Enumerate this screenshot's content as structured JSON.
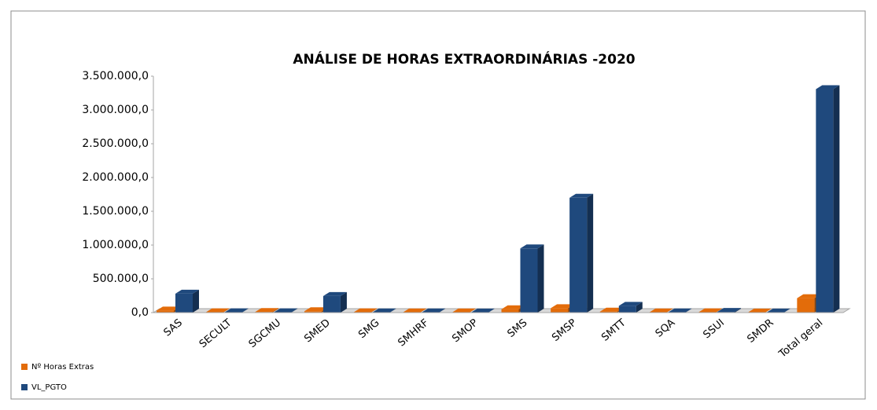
{
  "chart_data": {
    "type": "bar3d",
    "title": "ANÁLISE DE HORAS EXTRAORDINÁRIAS -2020",
    "categories": [
      "SAS",
      "SECULT",
      "SGCMU",
      "SMED",
      "SMG",
      "SMHRF",
      "SMOP",
      "SMS",
      "SMSP",
      "SMTT",
      "SQA",
      "SSUI",
      "SMDR",
      "Total geral"
    ],
    "series": [
      {
        "name": "Nº Horas Extras",
        "color": "#e36c0a",
        "values": [
          30000,
          5000,
          8000,
          20000,
          5000,
          3000,
          3000,
          50000,
          65000,
          15000,
          3000,
          5000,
          2000,
          214000
        ]
      },
      {
        "name": "VL_PGTO",
        "color": "#1f497d",
        "values": [
          280000,
          5000,
          5000,
          245000,
          3000,
          3000,
          2000,
          950000,
          1700000,
          100000,
          3000,
          10000,
          2000,
          3308000
        ]
      }
    ],
    "ylim": [
      0,
      3500000
    ],
    "yticks": [
      {
        "value": 0,
        "label": "0,0"
      },
      {
        "value": 500000,
        "label": "500.000,0"
      },
      {
        "value": 1000000,
        "label": "1.000.000,0"
      },
      {
        "value": 1500000,
        "label": "1.500.000,0"
      },
      {
        "value": 2000000,
        "label": "2.000.000,0"
      },
      {
        "value": 2500000,
        "label": "2.500.000,0"
      },
      {
        "value": 3000000,
        "label": "3.000.000,0"
      },
      {
        "value": 3500000,
        "label": "3.500.000,0"
      }
    ],
    "legend": "bottom-left"
  }
}
